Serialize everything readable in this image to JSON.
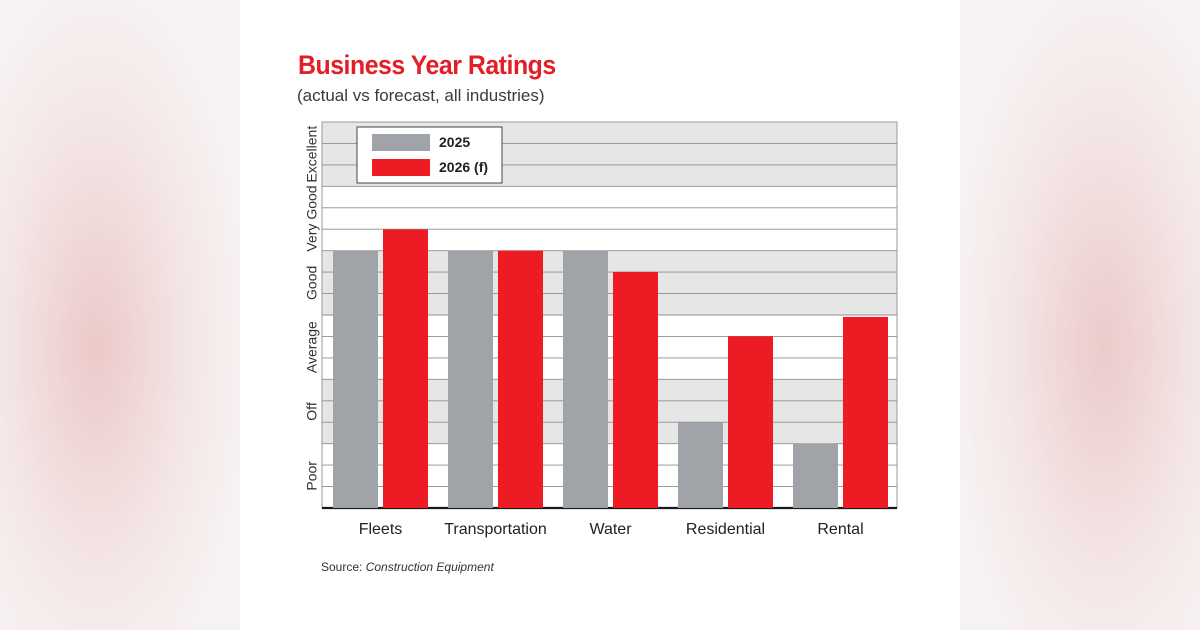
{
  "chart_data": {
    "type": "bar",
    "title": "Business Year Ratings",
    "subtitle": "(actual vs forecast, all industries)",
    "categories": [
      "Fleets",
      "Transportation",
      "Water",
      "Residential",
      "Rental"
    ],
    "rating_levels": [
      "Poor",
      "Off",
      "Average",
      "Good",
      "Very Good",
      "Excellent"
    ],
    "ylim": [
      0,
      6
    ],
    "series": [
      {
        "name": "2025",
        "color": "#a0a4a9",
        "values": [
          4.0,
          4.0,
          4.0,
          1.33,
          1.0
        ]
      },
      {
        "name": "2026 (f)",
        "color": "#ed1c24",
        "values": [
          4.33,
          4.0,
          3.67,
          2.67,
          2.97
        ]
      }
    ],
    "legend_position": "top-left",
    "grid": true,
    "source_label": "Source:",
    "source_name": "Construction Equipment"
  }
}
